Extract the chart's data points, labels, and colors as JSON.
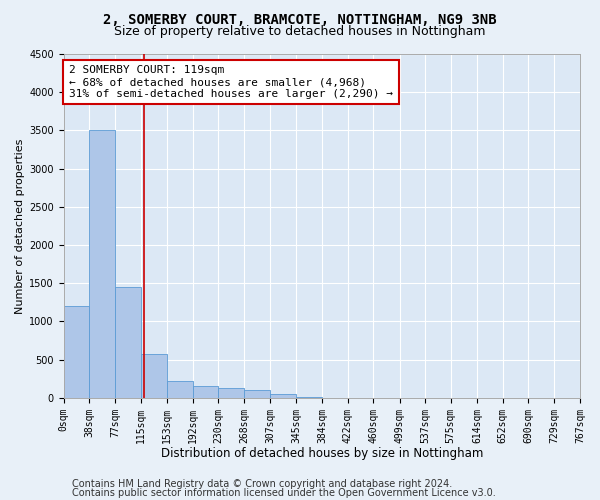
{
  "title1": "2, SOMERBY COURT, BRAMCOTE, NOTTINGHAM, NG9 3NB",
  "title2": "Size of property relative to detached houses in Nottingham",
  "xlabel": "Distribution of detached houses by size in Nottingham",
  "ylabel": "Number of detached properties",
  "footer1": "Contains HM Land Registry data © Crown copyright and database right 2024.",
  "footer2": "Contains public sector information licensed under the Open Government Licence v3.0.",
  "bar_edges": [
    0,
    38,
    77,
    115,
    153,
    192,
    230,
    268,
    307,
    345,
    384,
    422,
    460,
    499,
    537,
    575,
    614,
    652,
    690,
    729,
    767
  ],
  "bar_heights": [
    1200,
    3500,
    1450,
    580,
    220,
    160,
    130,
    105,
    55,
    5,
    0,
    0,
    0,
    0,
    0,
    0,
    0,
    0,
    0,
    0
  ],
  "bar_color": "#aec6e8",
  "bar_edge_color": "#5b9bd5",
  "subject_x": 119,
  "annotation_title": "2 SOMERBY COURT: 119sqm",
  "annotation_line1": "← 68% of detached houses are smaller (4,968)",
  "annotation_line2": "31% of semi-detached houses are larger (2,290) →",
  "annotation_box_color": "#ffffff",
  "annotation_box_edge": "#cc0000",
  "vline_color": "#cc0000",
  "ylim": [
    0,
    4500
  ],
  "xlim": [
    0,
    767
  ],
  "yticks": [
    0,
    500,
    1000,
    1500,
    2000,
    2500,
    3000,
    3500,
    4000,
    4500
  ],
  "bg_color": "#e8f0f8",
  "plot_bg_color": "#dce8f5",
  "grid_color": "#ffffff",
  "title1_fontsize": 10,
  "title2_fontsize": 9,
  "xlabel_fontsize": 8.5,
  "ylabel_fontsize": 8,
  "tick_fontsize": 7,
  "annotation_fontsize": 8,
  "footer_fontsize": 7
}
